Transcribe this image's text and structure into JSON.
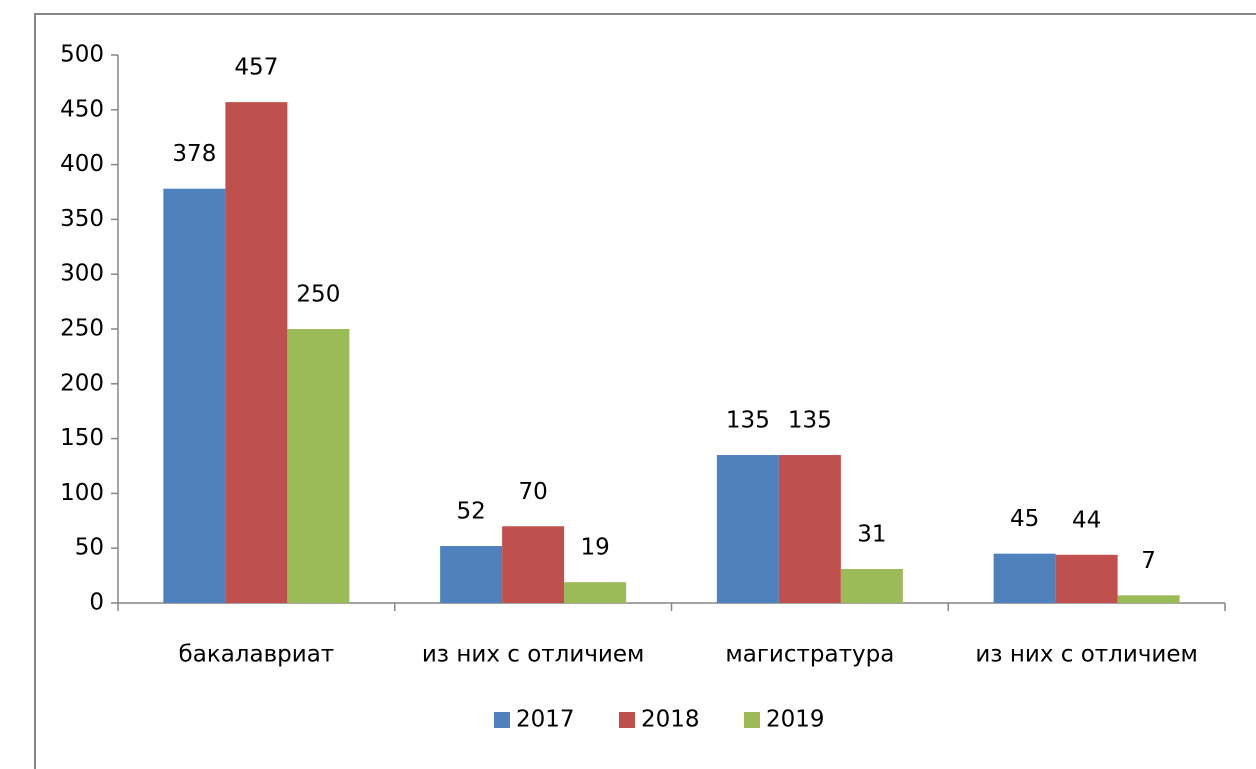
{
  "chart_data": {
    "type": "bar",
    "categories": [
      "бакалавриат",
      "из них с отличием",
      "магистратура",
      "из них с отличием"
    ],
    "series": [
      {
        "name": "2017",
        "color": "#4f81bd",
        "values": [
          378,
          52,
          135,
          45
        ]
      },
      {
        "name": "2018",
        "color": "#c0504d",
        "values": [
          457,
          70,
          135,
          44
        ]
      },
      {
        "name": "2019",
        "color": "#9bbb59",
        "values": [
          250,
          19,
          31,
          7
        ]
      }
    ],
    "ylim": [
      0,
      500
    ],
    "yticks": [
      0,
      50,
      100,
      150,
      200,
      250,
      300,
      350,
      400,
      450,
      500
    ],
    "grid": false,
    "legend": "bottom"
  }
}
